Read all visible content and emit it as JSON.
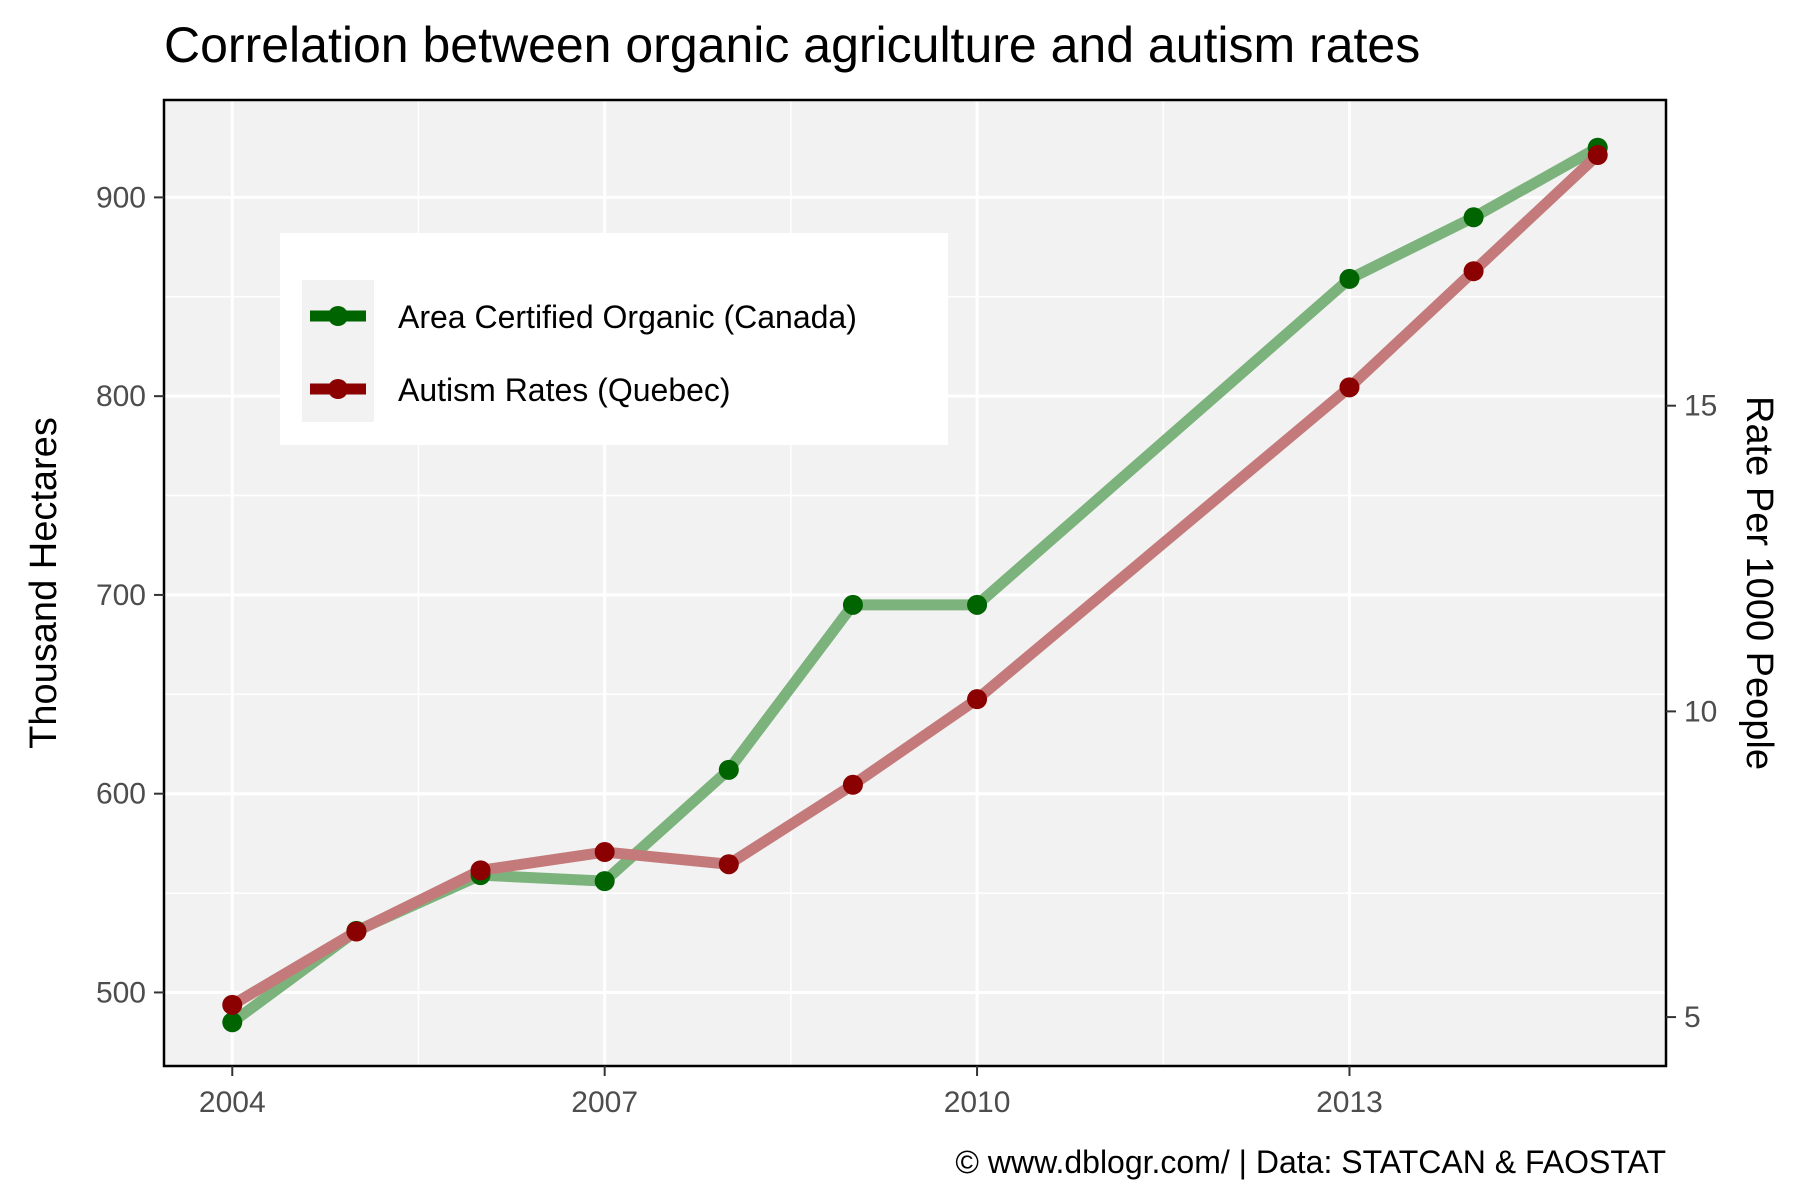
{
  "chart_data": {
    "type": "line",
    "title": "Correlation between organic agriculture and autism rates",
    "ylabel": "Thousand Hectares",
    "y2label": "Rate Per 1000 People",
    "caption": "© www.dblogr.com/  |  Data: STATCAN & FAOSTAT",
    "x": [
      2004,
      2005,
      2006,
      2007,
      2008,
      2009,
      2010,
      2013,
      2014,
      2015
    ],
    "xticks": [
      "2004",
      "2007",
      "2010",
      "2013"
    ],
    "yticks": [
      "500",
      "600",
      "700",
      "800",
      "900"
    ],
    "y2ticks": [
      "5",
      "10",
      "15"
    ],
    "xlim": [
      2003.45,
      2015.55
    ],
    "ylim": [
      463,
      949
    ],
    "y2lim": [
      4.2,
      20.0
    ],
    "grid": true,
    "legend_position": "top-left",
    "series": [
      {
        "name": "Area Certified Organic (Canada)",
        "axis": "left",
        "line_color": "#7cb37c",
        "point_color": "#006400",
        "values": [
          485,
          531,
          559,
          556,
          612,
          695,
          695,
          859,
          890,
          925
        ]
      },
      {
        "name": "Autism Rates (Quebec)",
        "axis": "right",
        "line_color": "#c47a7a",
        "point_color": "#8b0000",
        "values": [
          5.2,
          6.4,
          7.4,
          7.7,
          7.5,
          8.8,
          10.2,
          15.3,
          17.2,
          19.1
        ]
      }
    ]
  }
}
